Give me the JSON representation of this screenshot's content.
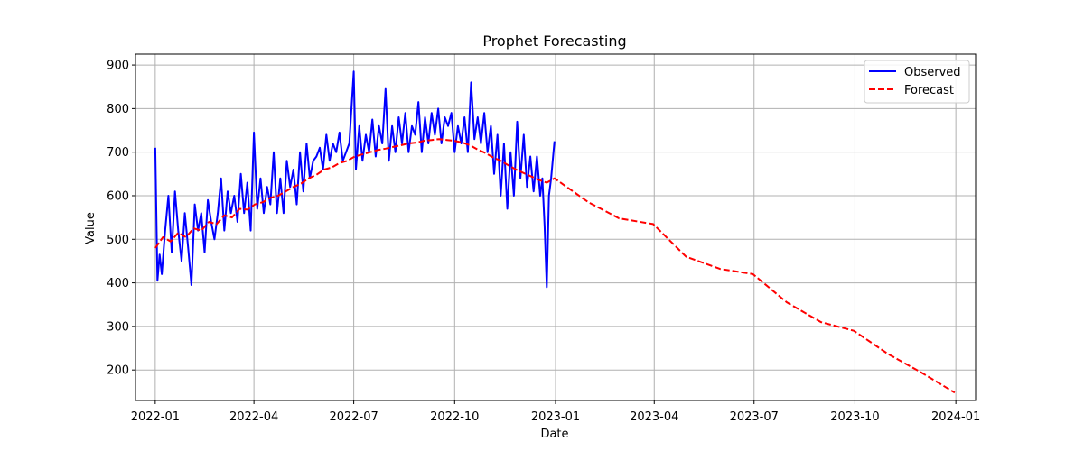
{
  "chart_data": {
    "type": "line",
    "title": "Prophet Forecasting",
    "xlabel": "Date",
    "ylabel": "Value",
    "x_ticks": [
      "2022-01",
      "2022-04",
      "2022-07",
      "2022-10",
      "2023-01",
      "2023-04",
      "2023-07",
      "2023-10",
      "2024-01"
    ],
    "y_ticks": [
      200,
      300,
      400,
      500,
      600,
      700,
      800,
      900
    ],
    "xlim": [
      "2021-12-14",
      "2024-01-19"
    ],
    "ylim": [
      130,
      925
    ],
    "grid": true,
    "legend_position": "top-right",
    "series": [
      {
        "name": "Observed",
        "color": "#0000ff",
        "style": "solid",
        "x": [
          "2022-01-01",
          "2022-01-03",
          "2022-01-05",
          "2022-01-07",
          "2022-01-10",
          "2022-01-13",
          "2022-01-16",
          "2022-01-19",
          "2022-01-22",
          "2022-01-25",
          "2022-01-28",
          "2022-01-31",
          "2022-02-03",
          "2022-02-06",
          "2022-02-09",
          "2022-02-12",
          "2022-02-15",
          "2022-02-18",
          "2022-02-21",
          "2022-02-24",
          "2022-02-27",
          "2022-03-02",
          "2022-03-05",
          "2022-03-08",
          "2022-03-11",
          "2022-03-14",
          "2022-03-17",
          "2022-03-20",
          "2022-03-23",
          "2022-03-26",
          "2022-03-29",
          "2022-04-01",
          "2022-04-04",
          "2022-04-07",
          "2022-04-10",
          "2022-04-13",
          "2022-04-16",
          "2022-04-19",
          "2022-04-22",
          "2022-04-25",
          "2022-04-28",
          "2022-05-01",
          "2022-05-04",
          "2022-05-07",
          "2022-05-10",
          "2022-05-13",
          "2022-05-16",
          "2022-05-19",
          "2022-05-22",
          "2022-05-25",
          "2022-05-28",
          "2022-05-31",
          "2022-06-03",
          "2022-06-06",
          "2022-06-09",
          "2022-06-12",
          "2022-06-15",
          "2022-06-18",
          "2022-06-21",
          "2022-06-24",
          "2022-06-27",
          "2022-07-01",
          "2022-07-03",
          "2022-07-06",
          "2022-07-09",
          "2022-07-12",
          "2022-07-15",
          "2022-07-18",
          "2022-07-21",
          "2022-07-24",
          "2022-07-27",
          "2022-07-30",
          "2022-08-02",
          "2022-08-05",
          "2022-08-08",
          "2022-08-11",
          "2022-08-14",
          "2022-08-17",
          "2022-08-20",
          "2022-08-23",
          "2022-08-26",
          "2022-08-29",
          "2022-09-01",
          "2022-09-04",
          "2022-09-07",
          "2022-09-10",
          "2022-09-13",
          "2022-09-16",
          "2022-09-19",
          "2022-09-22",
          "2022-09-25",
          "2022-09-28",
          "2022-10-01",
          "2022-10-04",
          "2022-10-07",
          "2022-10-10",
          "2022-10-13",
          "2022-10-16",
          "2022-10-19",
          "2022-10-22",
          "2022-10-25",
          "2022-10-28",
          "2022-10-31",
          "2022-11-03",
          "2022-11-06",
          "2022-11-09",
          "2022-11-12",
          "2022-11-15",
          "2022-11-18",
          "2022-11-21",
          "2022-11-24",
          "2022-11-27",
          "2022-11-30",
          "2022-12-03",
          "2022-12-06",
          "2022-12-09",
          "2022-12-12",
          "2022-12-15",
          "2022-12-18",
          "2022-12-20",
          "2022-12-22",
          "2022-12-24",
          "2022-12-26",
          "2022-12-28",
          "2022-12-31"
        ],
        "values": [
          710,
          405,
          465,
          420,
          520,
          600,
          470,
          610,
          520,
          450,
          560,
          480,
          395,
          580,
          520,
          560,
          470,
          590,
          540,
          500,
          560,
          640,
          520,
          610,
          560,
          600,
          540,
          650,
          560,
          630,
          520,
          745,
          570,
          640,
          560,
          620,
          580,
          700,
          560,
          640,
          560,
          680,
          620,
          660,
          580,
          700,
          610,
          720,
          640,
          680,
          690,
          710,
          660,
          740,
          680,
          720,
          700,
          745,
          680,
          700,
          720,
          885,
          660,
          760,
          680,
          740,
          700,
          775,
          690,
          760,
          720,
          845,
          680,
          760,
          700,
          780,
          720,
          790,
          700,
          760,
          740,
          815,
          700,
          780,
          720,
          790,
          740,
          800,
          720,
          780,
          760,
          790,
          700,
          760,
          720,
          780,
          700,
          860,
          730,
          780,
          720,
          790,
          700,
          760,
          650,
          740,
          600,
          720,
          570,
          700,
          600,
          770,
          640,
          740,
          620,
          690,
          610,
          690,
          600,
          640,
          530,
          390,
          600,
          640,
          725
        ]
      },
      {
        "name": "Forecast",
        "color": "#ff0000",
        "style": "dashed",
        "x": [
          "2022-01-01",
          "2022-01-08",
          "2022-01-15",
          "2022-01-22",
          "2022-01-29",
          "2022-02-05",
          "2022-02-12",
          "2022-02-19",
          "2022-02-26",
          "2022-03-05",
          "2022-03-12",
          "2022-03-19",
          "2022-03-26",
          "2022-04-02",
          "2022-04-09",
          "2022-04-16",
          "2022-04-23",
          "2022-04-30",
          "2022-05-07",
          "2022-05-14",
          "2022-05-21",
          "2022-05-28",
          "2022-06-04",
          "2022-06-11",
          "2022-06-18",
          "2022-06-25",
          "2022-07-02",
          "2022-07-09",
          "2022-07-16",
          "2022-07-23",
          "2022-07-30",
          "2022-08-06",
          "2022-08-13",
          "2022-08-20",
          "2022-08-27",
          "2022-09-03",
          "2022-09-10",
          "2022-09-17",
          "2022-09-24",
          "2022-10-01",
          "2022-10-08",
          "2022-10-15",
          "2022-10-22",
          "2022-10-29",
          "2022-11-05",
          "2022-11-12",
          "2022-11-19",
          "2022-11-26",
          "2022-12-03",
          "2022-12-10",
          "2022-12-17",
          "2022-12-24",
          "2022-12-31",
          "2023-01-31",
          "2023-02-28",
          "2023-03-31",
          "2023-04-30",
          "2023-05-31",
          "2023-06-30",
          "2023-07-31",
          "2023-08-31",
          "2023-09-30",
          "2023-10-31",
          "2023-11-30",
          "2023-12-31"
        ],
        "values": [
          480,
          505,
          495,
          515,
          505,
          525,
          520,
          540,
          535,
          555,
          550,
          570,
          568,
          580,
          585,
          595,
          600,
          610,
          620,
          628,
          640,
          648,
          660,
          665,
          675,
          680,
          690,
          695,
          700,
          705,
          708,
          712,
          716,
          720,
          722,
          726,
          728,
          730,
          728,
          726,
          722,
          716,
          706,
          698,
          688,
          680,
          670,
          660,
          652,
          644,
          636,
          630,
          640,
          585,
          548,
          535,
          460,
          432,
          420,
          355,
          310,
          290,
          237,
          195,
          148
        ]
      }
    ]
  }
}
